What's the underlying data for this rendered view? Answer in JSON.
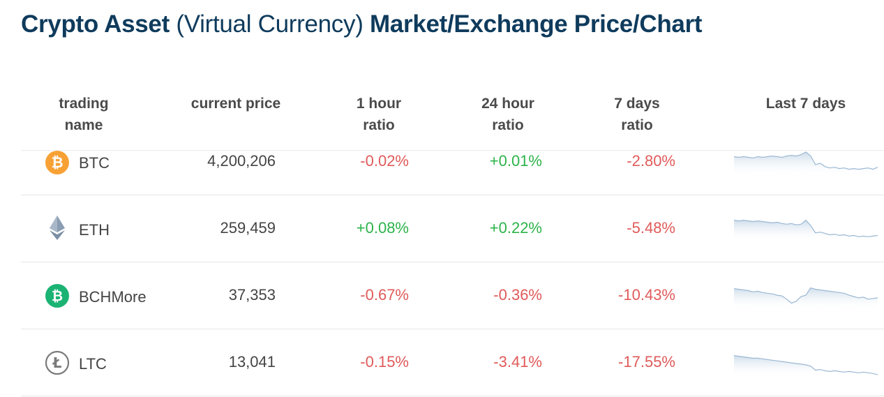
{
  "title": {
    "bold1": "Crypto Asset",
    "light": " (Virtual Currency) ",
    "bold2": "Market/Exchange Price/Chart"
  },
  "headers": {
    "name": [
      "trading",
      "name"
    ],
    "price": "current price",
    "h1": [
      "1 hour",
      "ratio"
    ],
    "h24": [
      "24 hour",
      "ratio"
    ],
    "d7": [
      "7 days",
      "ratio"
    ],
    "chart": "Last 7 days"
  },
  "colors": {
    "title": "#0f3b5c",
    "positive": "#2cb34a",
    "negative": "#e05a5a",
    "sparkline": "#9bb8d3"
  },
  "rows": [
    {
      "name": "BTC",
      "icon": "bitcoin-icon",
      "price": "4,200,206",
      "h1": "-0.02%",
      "h24": "+0.01%",
      "d7": "-2.80%",
      "spark": [
        10,
        11,
        10,
        11,
        12,
        10,
        11,
        10,
        9,
        10,
        11,
        9,
        8,
        9,
        7,
        3,
        9,
        22,
        20,
        25,
        27,
        26,
        28,
        27,
        29,
        28,
        29,
        28,
        27,
        29,
        26
      ]
    },
    {
      "name": "ETH",
      "icon": "ethereum-icon",
      "price": "259,459",
      "h1": "+0.08%",
      "h24": "+0.22%",
      "d7": "-5.48%",
      "spark": [
        8,
        9,
        8,
        9,
        10,
        9,
        10,
        11,
        12,
        11,
        13,
        14,
        13,
        15,
        14,
        8,
        16,
        27,
        26,
        28,
        30,
        29,
        31,
        30,
        32,
        31,
        33,
        32,
        33,
        32,
        31
      ]
    },
    {
      "name": "BCHMore",
      "icon": "bitcoin-cash-icon",
      "price": "37,353",
      "h1": "-0.67%",
      "h24": "-0.36%",
      "d7": "-10.43%",
      "spark": [
        8,
        9,
        10,
        11,
        13,
        12,
        14,
        15,
        16,
        18,
        19,
        24,
        30,
        27,
        20,
        18,
        7,
        9,
        10,
        11,
        12,
        13,
        14,
        15,
        18,
        20,
        22,
        21,
        24,
        23,
        22
      ]
    },
    {
      "name": "LTC",
      "icon": "litecoin-icon",
      "price": "13,041",
      "h1": "-0.15%",
      "h24": "-3.41%",
      "d7": "-17.55%",
      "spark": [
        8,
        9,
        10,
        11,
        12,
        12,
        13,
        14,
        15,
        16,
        17,
        18,
        19,
        20,
        21,
        22,
        24,
        30,
        29,
        31,
        32,
        31,
        32,
        33,
        32,
        33,
        34,
        33,
        34,
        35,
        37
      ]
    }
  ]
}
